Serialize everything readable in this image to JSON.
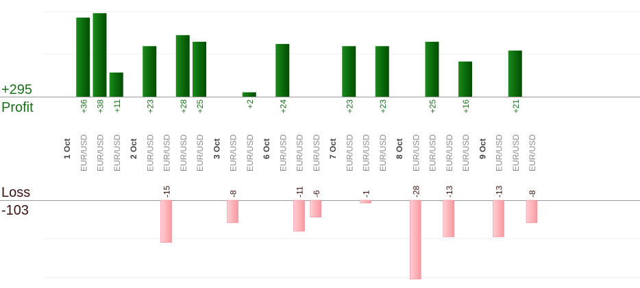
{
  "summary": {
    "profit_total": "+295",
    "profit_label": "Profit",
    "loss_label": "Loss",
    "loss_total": "-103"
  },
  "colors": {
    "profit_bar": "#0b6b0b",
    "profit_text": "#1a6e1a",
    "loss_bar": "#ffb3b8",
    "loss_text": "#3b0f0f",
    "pair_text": "#8a8a8a",
    "date_text": "#444444"
  },
  "chart_data": {
    "type": "bar",
    "profit_ylim": [
      0,
      44
    ],
    "loss_ylim": [
      0,
      28
    ],
    "grid": true,
    "columns": [
      {
        "kind": "date",
        "label": "1 Oct"
      },
      {
        "kind": "trade",
        "pair": "EUR/USD",
        "value": 36,
        "label": "+36"
      },
      {
        "kind": "trade",
        "pair": "EUR/USD",
        "value": 38,
        "label": "+38"
      },
      {
        "kind": "trade",
        "pair": "EUR/USD",
        "value": 11,
        "label": "+11"
      },
      {
        "kind": "date",
        "label": "2 Oct"
      },
      {
        "kind": "trade",
        "pair": "EUR/USD",
        "value": 23,
        "label": "+23"
      },
      {
        "kind": "trade",
        "pair": "EUR/USD",
        "value": -15,
        "label": "-15"
      },
      {
        "kind": "trade",
        "pair": "EUR/USD",
        "value": 28,
        "label": "+28"
      },
      {
        "kind": "trade",
        "pair": "EUR/USD",
        "value": 25,
        "label": "+25"
      },
      {
        "kind": "date",
        "label": "3 Oct"
      },
      {
        "kind": "trade",
        "pair": "EUR/USD",
        "value": -8,
        "label": "-8"
      },
      {
        "kind": "trade",
        "pair": "EUR/USD",
        "value": 2,
        "label": "+2"
      },
      {
        "kind": "date",
        "label": "6 Oct"
      },
      {
        "kind": "trade",
        "pair": "EUR/USD",
        "value": 24,
        "label": "+24"
      },
      {
        "kind": "trade",
        "pair": "EUR/USD",
        "value": -11,
        "label": "-11"
      },
      {
        "kind": "trade",
        "pair": "EUR/USD",
        "value": -6,
        "label": "-6"
      },
      {
        "kind": "date",
        "label": "7 Oct"
      },
      {
        "kind": "trade",
        "pair": "EUR/USD",
        "value": 23,
        "label": "+23"
      },
      {
        "kind": "trade",
        "pair": "EUR/USD",
        "value": -1,
        "label": "-1"
      },
      {
        "kind": "trade",
        "pair": "EUR/USD",
        "value": 23,
        "label": "+23"
      },
      {
        "kind": "date",
        "label": "8 Oct"
      },
      {
        "kind": "trade",
        "pair": "EUR/USD",
        "value": -28,
        "label": "-28"
      },
      {
        "kind": "trade",
        "pair": "EUR/USD",
        "value": 25,
        "label": "+25"
      },
      {
        "kind": "trade",
        "pair": "EUR/USD",
        "value": -13,
        "label": "-13"
      },
      {
        "kind": "trade",
        "pair": "EUR/USD",
        "value": 16,
        "label": "+16"
      },
      {
        "kind": "date",
        "label": "9 Oct"
      },
      {
        "kind": "trade",
        "pair": "EUR/USD",
        "value": -13,
        "label": "-13"
      },
      {
        "kind": "trade",
        "pair": "EUR/USD",
        "value": 21,
        "label": "+21"
      },
      {
        "kind": "trade",
        "pair": "EUR/USD",
        "value": -8,
        "label": "-8"
      }
    ]
  }
}
